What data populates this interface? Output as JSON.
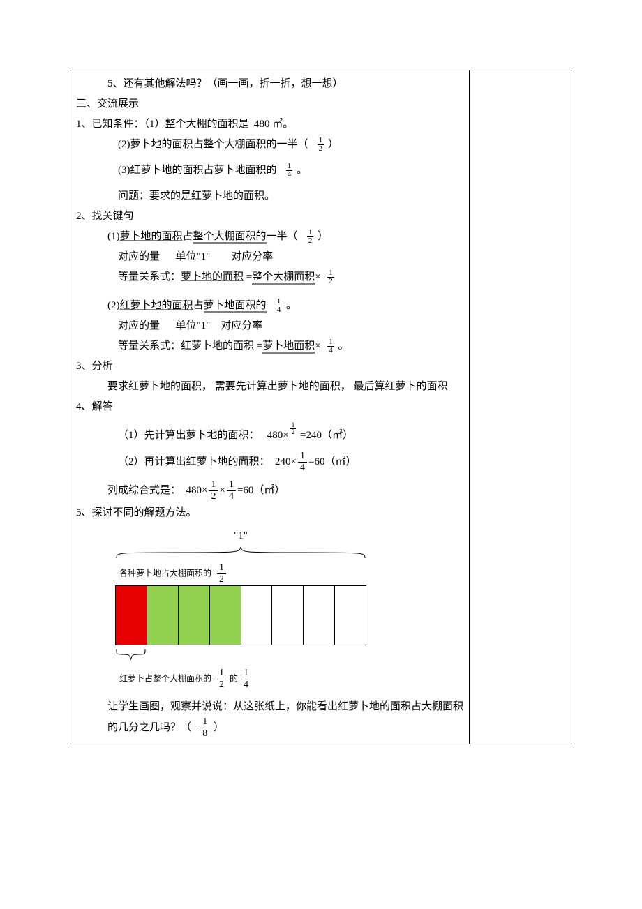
{
  "header": {
    "line5": "5、还有其他解法吗？（画一画，折一折，想一想）",
    "section3": "三、交流展示"
  },
  "sec1": {
    "lead": "1、已知条件：（1）整个大棚的面积是",
    "area_value": "480 ㎡。",
    "cond2_a": "(2)萝卜地的面积占整个大棚面积的一半（",
    "cond2_b": "）",
    "cond3_a": "(3)红萝卜地的面积占萝卜地面积的",
    "cond3_b": "。",
    "ask": "问题：要求的是红萝卜地的面积。"
  },
  "sec2": {
    "lead": "2、找关键句",
    "k1_a": "(1)",
    "k1_u1": "萝卜地的面积",
    "k1_m": "占",
    "k1_u2": "整个大棚面积的",
    "k1_tail": "一半（",
    "k1_close": "）",
    "row_labels": "对应的量",
    "row_labels_b": "单位\"1\"",
    "row_labels_c": "对应分率",
    "eq1_a": "等量关系式：",
    "eq1_u1": "萝卜地的面积",
    "eq1_m": " =",
    "eq1_u2": "整个大棚面积",
    "eq1_tail": "×",
    "k2_a": "(2)",
    "k2_u1": "红萝卜地的面积",
    "k2_m": "占",
    "k2_u2": "萝卜地面积的",
    "k2_b": "。",
    "eq2_a": "等量关系式：",
    "eq2_u1": "红萝卜地的面积",
    "eq2_m": " =",
    "eq2_u2": "萝卜地面积",
    "eq2_tail": "×",
    "eq2_b": "。"
  },
  "sec3": {
    "lead": "3、分析",
    "body_a": "要求红萝卜地的面积，",
    "body_b": "需要先计算出萝卜地的面积，",
    "body_c": "最后算红萝卜的面积"
  },
  "sec4": {
    "lead": "4、解答",
    "s1_a": "（1）先计算出萝卜地的面积：",
    "s1_b": "480×",
    "s1_c": "=240（㎡）",
    "s2_a": "（2）再计算出红萝卜地的面积：",
    "s2_b": "240×",
    "s2_c": "=60（㎡）",
    "comb_a": "列成综合式是：",
    "comb_b": "480×",
    "comb_c": "×",
    "comb_d": "=60（㎡）"
  },
  "sec5": {
    "lead": "5、探讨不同的解题方法。",
    "quote1": "\"1\"",
    "top_label": "各种萝卜地占大棚面积的",
    "bottom_label_a": "红萝卜占整个大棚面积的",
    "bottom_label_b": "的",
    "tail_a": "让学生画图，观察并说说：从这张纸上，你能看出红萝卜地的面积占大棚面积的几分之几吗？（",
    "tail_b": "）"
  },
  "fractions": {
    "half": {
      "n": "1",
      "d": "2"
    },
    "quarter": {
      "n": "1",
      "d": "4"
    },
    "eighth": {
      "n": "1",
      "d": "8"
    }
  },
  "diagram": {
    "cells": 8,
    "colors": [
      "#e60000",
      "#92d050",
      "#92d050",
      "#92d050",
      "#ffffff",
      "#ffffff",
      "#ffffff",
      "#ffffff"
    ],
    "border_color": "#000000",
    "brace_color": "#000000"
  }
}
